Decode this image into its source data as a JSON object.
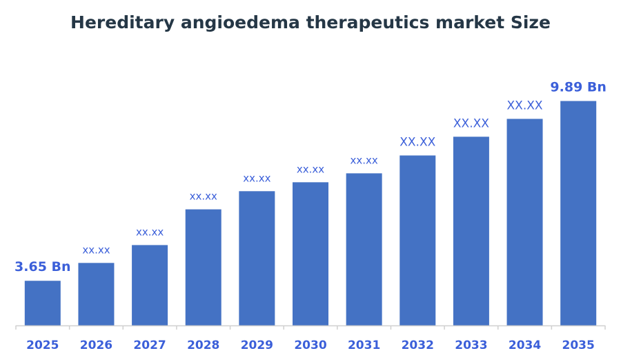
{
  "chart_data": {
    "type": "bar",
    "title": "Hereditary angioedema therapeutics market Size",
    "xlabel": "",
    "ylabel": "",
    "categories": [
      "2025",
      "2026",
      "2027",
      "2028",
      "2029",
      "2030",
      "2031",
      "2032",
      "2033",
      "2034",
      "2035"
    ],
    "values": [
      3.65,
      4.27,
      4.89,
      6.13,
      6.76,
      7.07,
      7.38,
      8.0,
      8.65,
      9.27,
      9.89
    ],
    "data_labels": [
      "3.65 Bn",
      "xx.xx",
      "xx.xx",
      "xx.xx",
      "xx.xx",
      "xx.xx",
      "xx.xx",
      "XX.XX",
      "XX.XX",
      "XX.XX",
      "9.89 Bn"
    ],
    "ylim": [
      2.1,
      10.5
    ],
    "grid": false,
    "colors": {
      "bar": "#4472C4",
      "label": "#3B5FD9",
      "title": "#253746",
      "axis": "#D0D0D0"
    }
  }
}
